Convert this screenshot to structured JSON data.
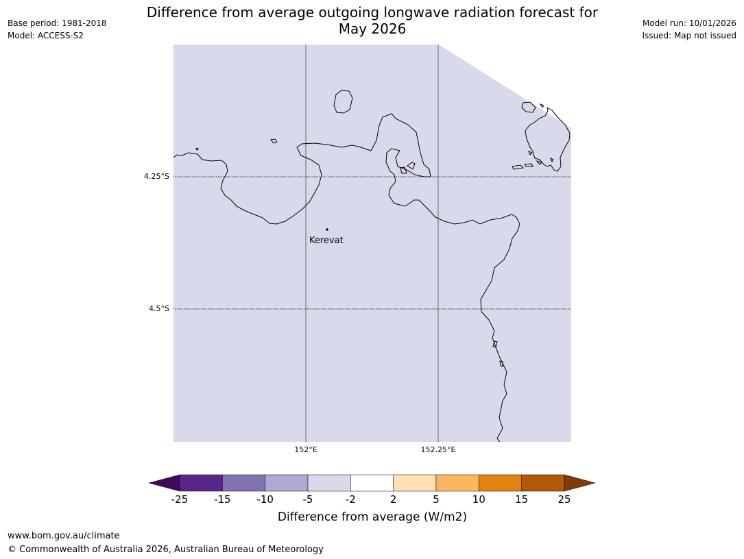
{
  "header": {
    "title_line1": "Difference from average outgoing longwave radiation forecast for",
    "title_line2": "May 2026",
    "base_period": "Base period: 1981-2018",
    "model": "Model: ACCESS-S2",
    "model_run": "Model run: 10/01/2026",
    "issued": "Issued: Map not issued"
  },
  "map": {
    "lat_labels": [
      "4.25°S",
      "4.5°S"
    ],
    "lon_labels": [
      "152°E",
      "152.25°E"
    ],
    "place": "Kerevat",
    "fill_color": "#d8d9ea"
  },
  "colorbar": {
    "title": "Difference from average (W/m2)",
    "ticks": [
      "-25",
      "-15",
      "-10",
      "-5",
      "-2",
      "2",
      "5",
      "10",
      "15",
      "25"
    ],
    "colors": [
      "#3f0a57",
      "#59268c",
      "#8372b0",
      "#b0a8d2",
      "#d8d9ea",
      "#ffffff",
      "#fee0b5",
      "#fbb662",
      "#e1830e",
      "#b35806",
      "#7f3b08"
    ]
  },
  "footer": {
    "url": "www.bom.gov.au/climate",
    "copyright": "© Commonwealth of Australia 2026, Australian Bureau of Meteorology"
  }
}
